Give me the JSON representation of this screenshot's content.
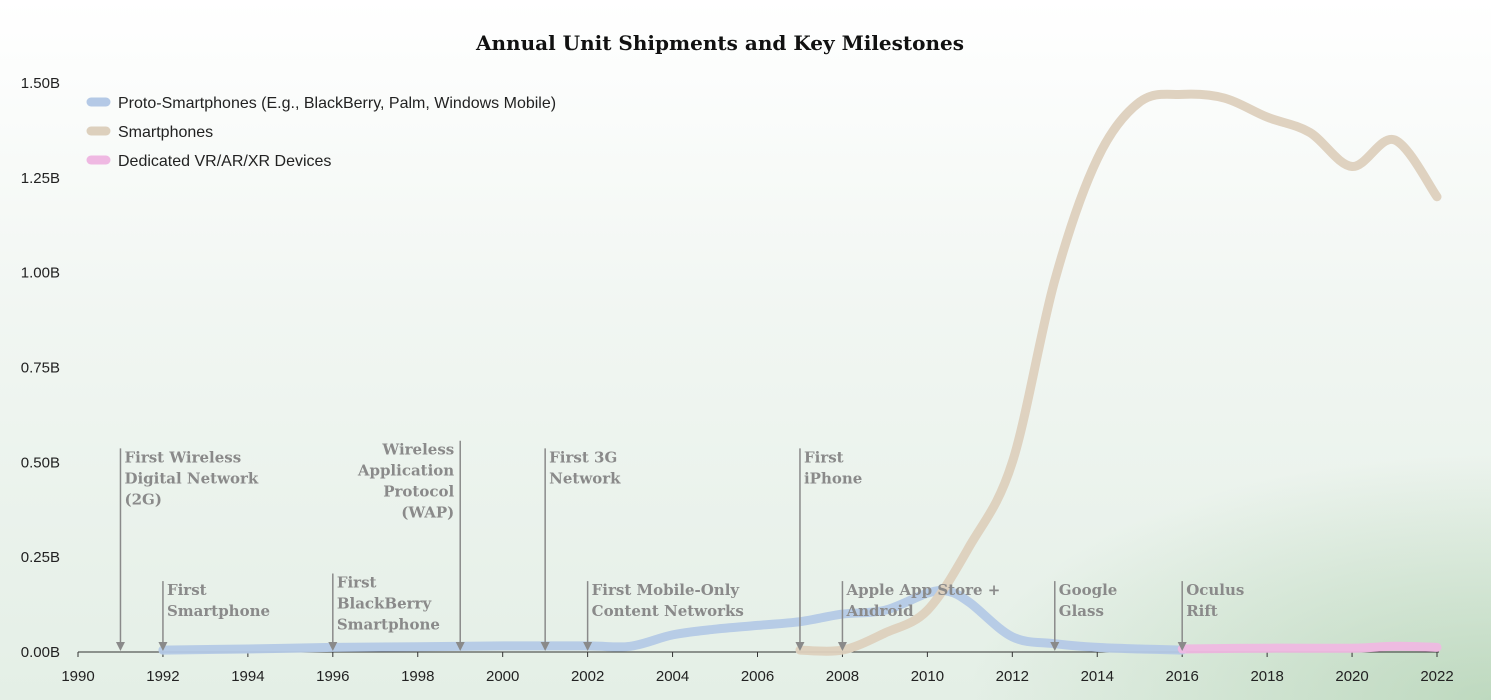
{
  "chart_data": {
    "type": "line",
    "title": "Annual Unit Shipments and Key Milestones",
    "xlim": [
      1990,
      2022
    ],
    "ylim": [
      0,
      1.5
    ],
    "x_ticks": [
      "1990",
      "1992",
      "1994",
      "1996",
      "1998",
      "2000",
      "2002",
      "2004",
      "2006",
      "2008",
      "2010",
      "2012",
      "2014",
      "2016",
      "2018",
      "2020",
      "2022"
    ],
    "y_ticks": [
      {
        "value": 0,
        "label": "0.00B"
      },
      {
        "value": 0.25,
        "label": "0.25B"
      },
      {
        "value": 0.5,
        "label": "0.50B"
      },
      {
        "value": 0.75,
        "label": "0.75B"
      },
      {
        "value": 1.0,
        "label": "1.00B"
      },
      {
        "value": 1.25,
        "label": "1.25B"
      },
      {
        "value": 1.5,
        "label": "1.50B"
      }
    ],
    "legend_position": "top-left",
    "series": [
      {
        "name": "Proto-Smartphones (E.g., BlackBerry, Palm, Windows Mobile)",
        "color": "#b4c9e6",
        "points": [
          [
            1992,
            0.005
          ],
          [
            1994,
            0.008
          ],
          [
            1996,
            0.012
          ],
          [
            1998,
            0.014
          ],
          [
            2000,
            0.016
          ],
          [
            2002,
            0.016
          ],
          [
            2003,
            0.015
          ],
          [
            2004,
            0.045
          ],
          [
            2005,
            0.06
          ],
          [
            2006,
            0.07
          ],
          [
            2007,
            0.08
          ],
          [
            2008,
            0.1
          ],
          [
            2009,
            0.11
          ],
          [
            2010,
            0.155
          ],
          [
            2010.5,
            0.16
          ],
          [
            2011,
            0.13
          ],
          [
            2012,
            0.04
          ],
          [
            2013,
            0.022
          ],
          [
            2014,
            0.012
          ],
          [
            2015,
            0.008
          ],
          [
            2016,
            0.005
          ]
        ]
      },
      {
        "name": "Smartphones",
        "color": "#ddd0bd",
        "points": [
          [
            2007,
            0.005
          ],
          [
            2008,
            0.005
          ],
          [
            2009,
            0.05
          ],
          [
            2010,
            0.11
          ],
          [
            2011,
            0.28
          ],
          [
            2012,
            0.5
          ],
          [
            2013,
            0.98
          ],
          [
            2014,
            1.3
          ],
          [
            2015,
            1.45
          ],
          [
            2016,
            1.47
          ],
          [
            2017,
            1.46
          ],
          [
            2018,
            1.41
          ],
          [
            2019,
            1.37
          ],
          [
            2020,
            1.28
          ],
          [
            2021,
            1.35
          ],
          [
            2022,
            1.2
          ]
        ]
      },
      {
        "name": "Dedicated VR/AR/XR Devices",
        "color": "#efb8e2",
        "points": [
          [
            2016,
            0.008
          ],
          [
            2018,
            0.01
          ],
          [
            2020,
            0.01
          ],
          [
            2021,
            0.015
          ],
          [
            2022,
            0.012
          ]
        ]
      }
    ],
    "annotations": [
      {
        "year": 1991,
        "text_y": 0.5,
        "align": "left",
        "lines": [
          "First Wireless",
          "Digital Network",
          "(2G)"
        ]
      },
      {
        "year": 1992,
        "text_y": 0.15,
        "align": "left",
        "lines": [
          "First",
          "Smartphone"
        ]
      },
      {
        "year": 1996,
        "text_y": 0.17,
        "align": "left",
        "lines": [
          "First",
          "BlackBerry",
          "Smartphone"
        ]
      },
      {
        "year": 1999,
        "text_y": 0.52,
        "align": "right",
        "lines": [
          "Wireless",
          "Application",
          "Protocol",
          "(WAP)"
        ]
      },
      {
        "year": 2001,
        "text_y": 0.5,
        "align": "left",
        "lines": [
          "First 3G",
          "Network"
        ]
      },
      {
        "year": 2002,
        "text_y": 0.15,
        "align": "left",
        "lines": [
          "First Mobile-Only",
          "Content Networks"
        ]
      },
      {
        "year": 2007,
        "text_y": 0.5,
        "align": "left",
        "lines": [
          "First",
          "iPhone"
        ]
      },
      {
        "year": 2008,
        "text_y": 0.15,
        "align": "left",
        "lines": [
          "Apple App Store +",
          "Android"
        ]
      },
      {
        "year": 2013,
        "text_y": 0.15,
        "align": "left",
        "lines": [
          "Google",
          "Glass"
        ]
      },
      {
        "year": 2016,
        "text_y": 0.15,
        "align": "left",
        "lines": [
          "Oculus",
          "Rift"
        ]
      }
    ]
  }
}
